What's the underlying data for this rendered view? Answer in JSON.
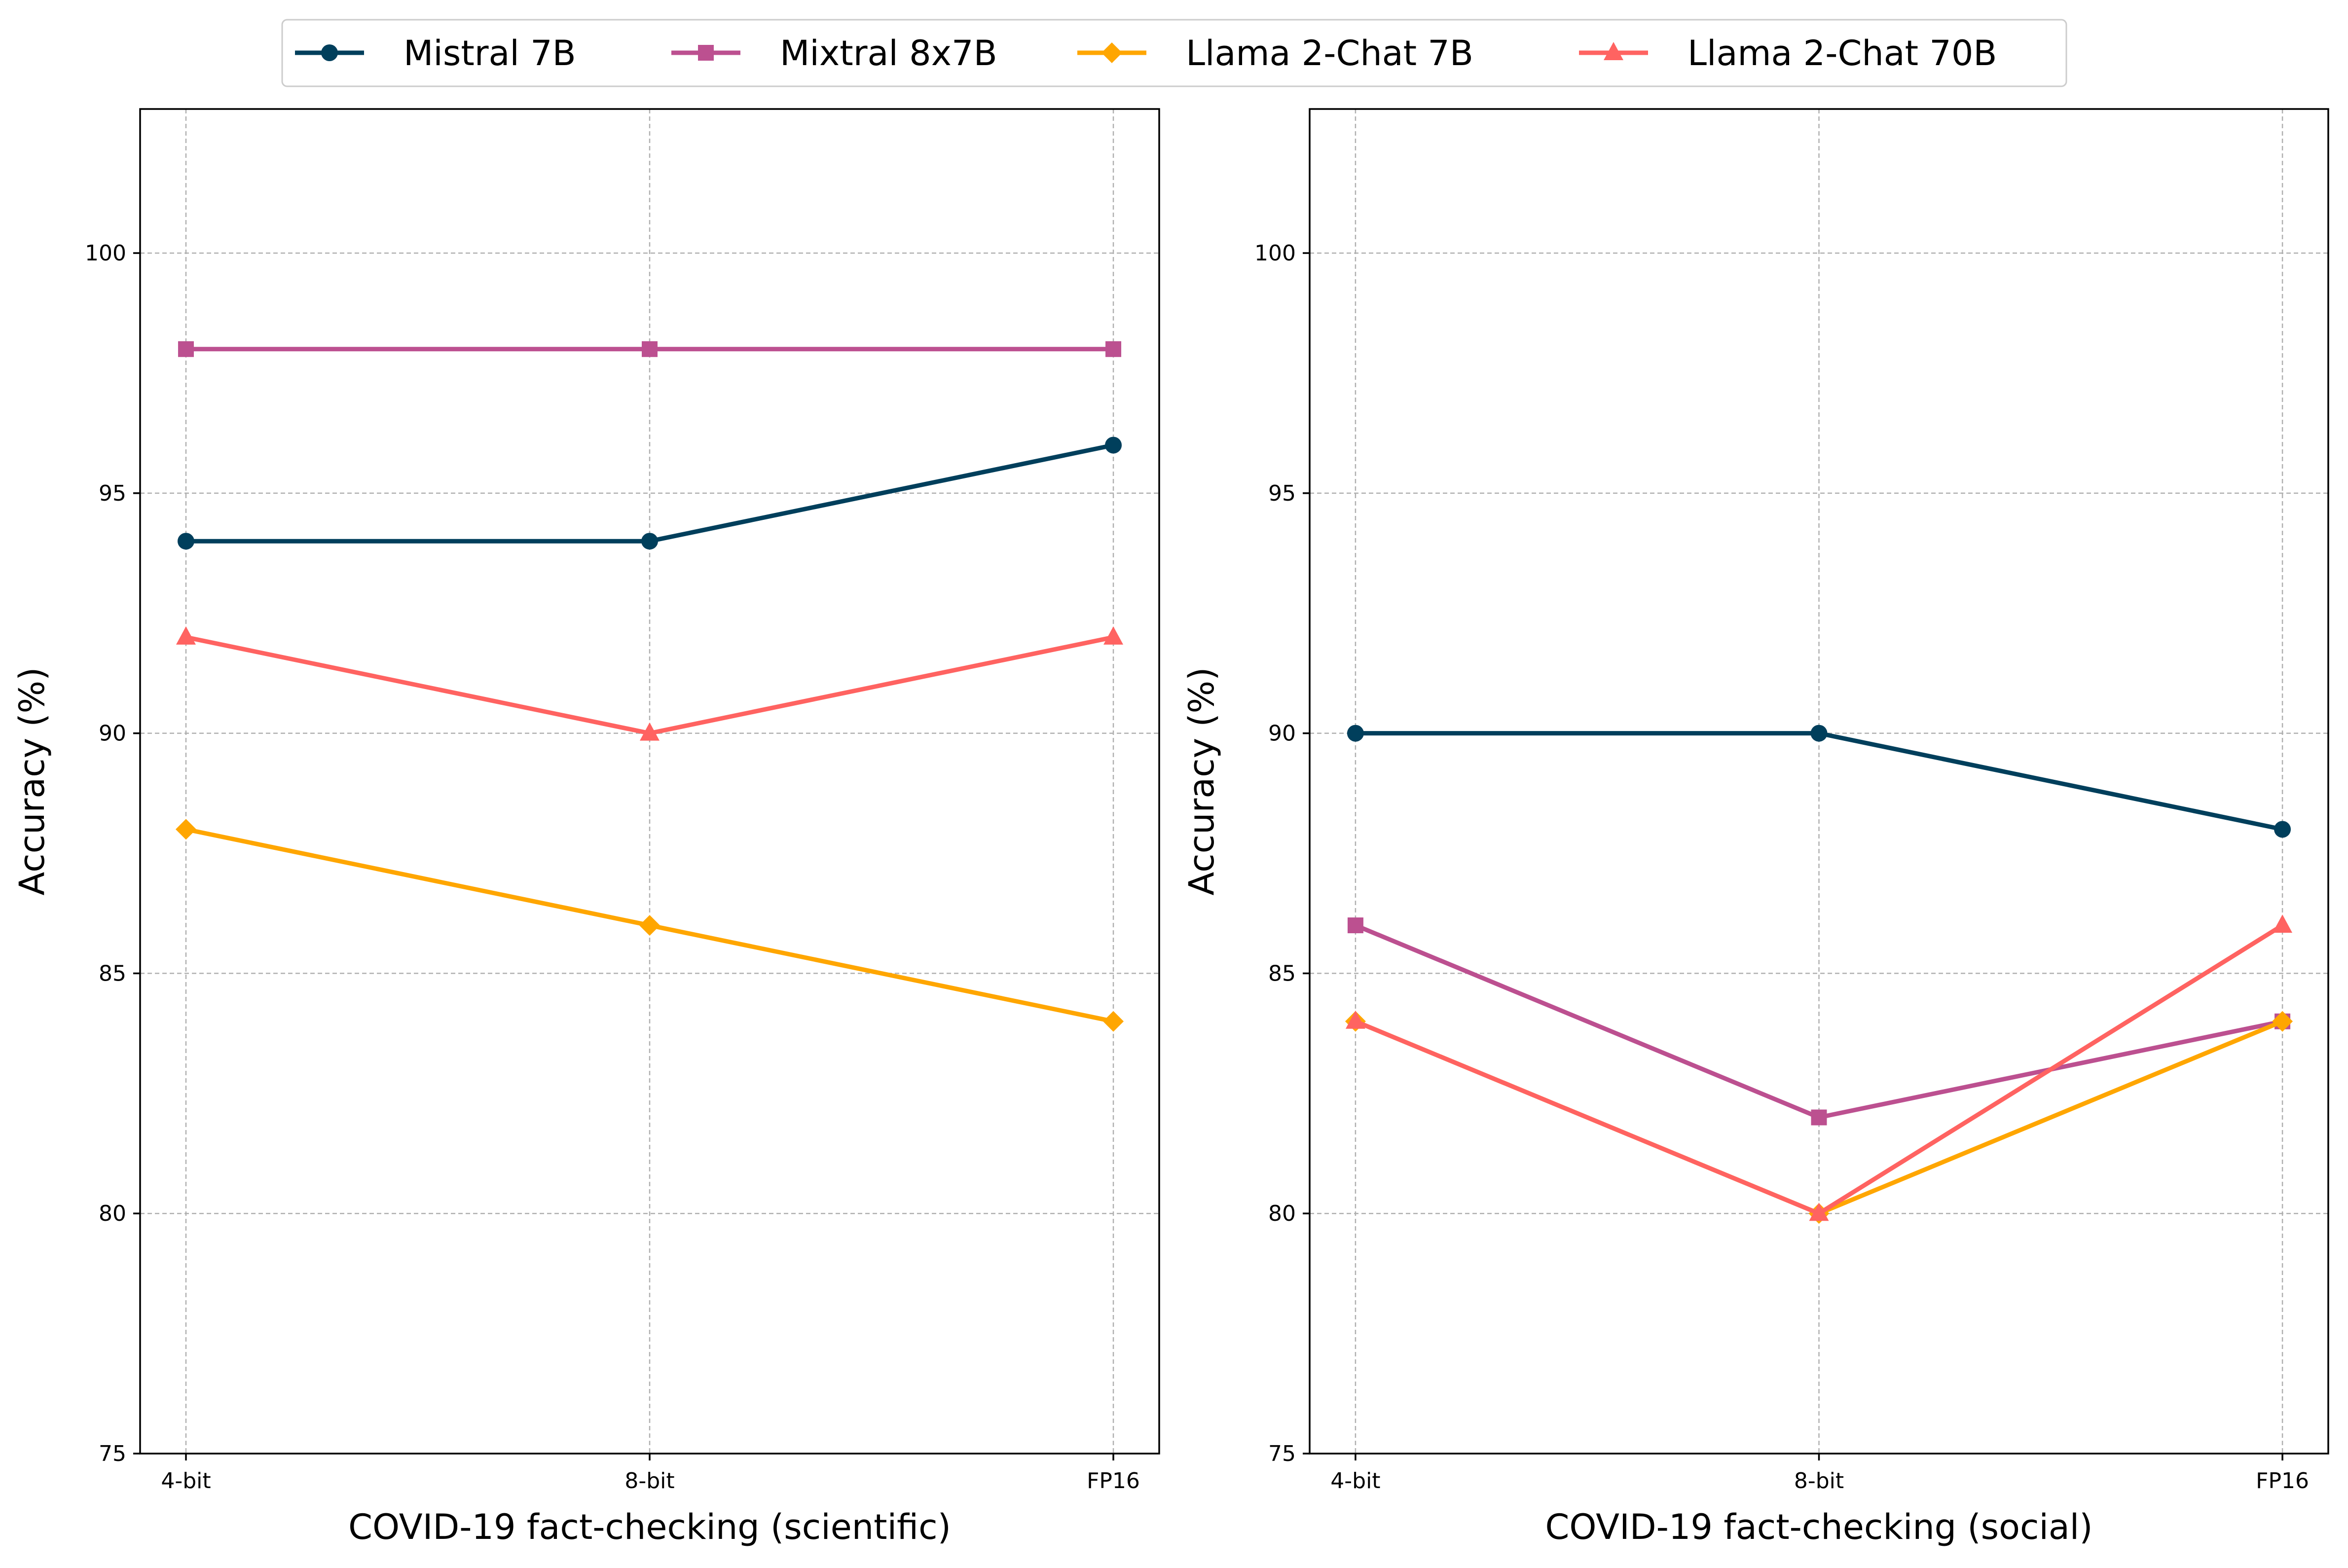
{
  "chart_data": [
    {
      "type": "line",
      "categories": [
        "4-bit",
        "8-bit",
        "FP16"
      ],
      "xlabel": "COVID-19 fact-checking (scientific)",
      "ylabel": "Accuracy (%)",
      "ylim": [
        75,
        103
      ],
      "yticks": [
        75,
        80,
        85,
        90,
        95,
        100
      ],
      "grid": true,
      "series": [
        {
          "name": "Mistral 7B",
          "values": [
            94,
            94,
            96
          ]
        },
        {
          "name": "Mixtral 8x7B",
          "values": [
            98,
            98,
            98
          ]
        },
        {
          "name": "Llama 2-Chat 7B",
          "values": [
            88,
            86,
            84
          ]
        },
        {
          "name": "Llama 2-Chat 70B",
          "values": [
            92,
            90,
            92
          ]
        }
      ]
    },
    {
      "type": "line",
      "categories": [
        "4-bit",
        "8-bit",
        "FP16"
      ],
      "xlabel": "COVID-19 fact-checking (social)",
      "ylabel": "Accuracy (%)",
      "ylim": [
        75,
        103
      ],
      "yticks": [
        75,
        80,
        85,
        90,
        95,
        100
      ],
      "grid": true,
      "series": [
        {
          "name": "Mistral 7B",
          "values": [
            90,
            90,
            88
          ]
        },
        {
          "name": "Mixtral 8x7B",
          "values": [
            86,
            82,
            84
          ]
        },
        {
          "name": "Llama 2-Chat 7B",
          "values": [
            84,
            80,
            84
          ]
        },
        {
          "name": "Llama 2-Chat 70B",
          "values": [
            84,
            80,
            86
          ]
        }
      ]
    }
  ],
  "legend": {
    "placement": "top-center",
    "entries": [
      {
        "name": "Mistral 7B",
        "color": "#003f5c",
        "marker": "circle"
      },
      {
        "name": "Mixtral 8x7B",
        "color": "#bc5090",
        "marker": "square"
      },
      {
        "name": "Llama 2-Chat 7B",
        "color": "#ffa600",
        "marker": "diamond"
      },
      {
        "name": "Llama 2-Chat 70B",
        "color": "#ff6361",
        "marker": "triangle"
      }
    ]
  }
}
